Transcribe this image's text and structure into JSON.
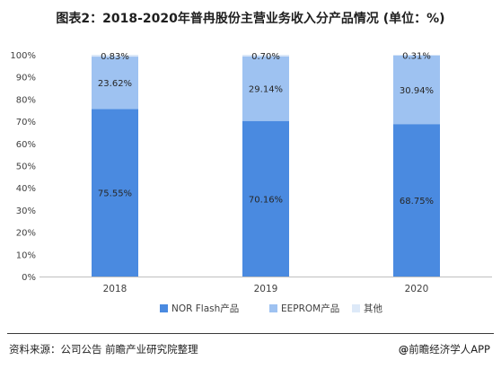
{
  "title": "图表2：2018-2020年普冉股份主营业务收入分产品情况 (单位：%)",
  "footer": {
    "source": "资料来源：公司公告 前瞻产业研究院整理",
    "brand_symbol": "@",
    "brand_text": "前瞻经济学人APP"
  },
  "chart_data": {
    "type": "bar",
    "stacked": true,
    "categories": [
      "2018",
      "2019",
      "2020"
    ],
    "series": [
      {
        "name": "NOR Flash产品",
        "values": [
          75.55,
          70.16,
          68.75
        ],
        "labels": [
          "75.55%",
          "70.16%",
          "68.75%"
        ],
        "color": "#4a8ae0"
      },
      {
        "name": "EEPROM产品",
        "values": [
          23.62,
          29.14,
          30.94
        ],
        "labels": [
          "23.62%",
          "29.14%",
          "30.94%"
        ],
        "color": "#9ec2f1"
      },
      {
        "name": "其他",
        "values": [
          0.83,
          0.7,
          0.31
        ],
        "labels": [
          "0.83%",
          "0.70%",
          "0.31%"
        ],
        "color": "#dde9f8"
      }
    ],
    "yticks": [
      "0%",
      "10%",
      "20%",
      "30%",
      "40%",
      "50%",
      "60%",
      "70%",
      "80%",
      "90%",
      "100%"
    ],
    "ylim": [
      0,
      100
    ],
    "grid": false,
    "legend": "bottom"
  }
}
